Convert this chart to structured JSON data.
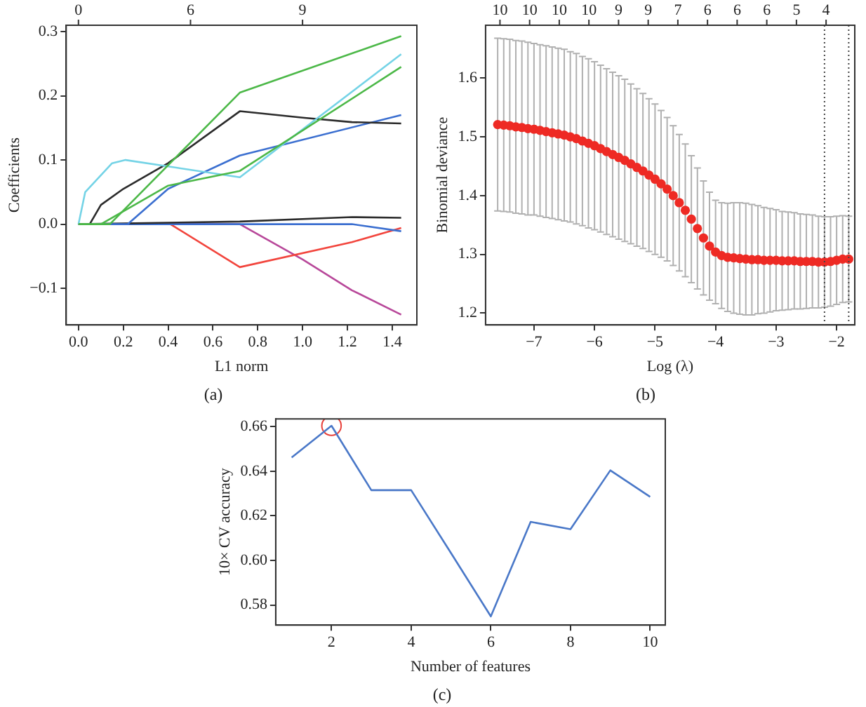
{
  "chart_data": [
    {
      "type": "line",
      "xlabel": "L1 norm",
      "ylabel": "Coefficients",
      "annotations": [
        "(a)",
        "0",
        "6",
        "9"
      ],
      "xlim": [
        -0.055,
        1.51
      ],
      "ylim": [
        -0.157,
        0.31
      ],
      "xticks": [
        {
          "value": 0,
          "label": "0.0"
        },
        {
          "value": 0.2,
          "label": "0.2"
        },
        {
          "value": 0.4,
          "label": "0.4"
        },
        {
          "value": 0.6,
          "label": "0.6"
        },
        {
          "value": 0.8,
          "label": "0.8"
        },
        {
          "value": 1,
          "label": "1.0"
        },
        {
          "value": 1.2,
          "label": "1.2"
        },
        {
          "value": 1.4,
          "label": "1.4"
        }
      ],
      "yticks": [
        {
          "value": -0.1,
          "label": "−0.1"
        },
        {
          "value": 0,
          "label": "0.0"
        },
        {
          "value": 0.1,
          "label": "0.1"
        },
        {
          "value": 0.2,
          "label": "0.2"
        },
        {
          "value": 0.3,
          "label": "0.3"
        }
      ],
      "grid": false,
      "legend": false,
      "marker": "none",
      "series": [
        {
          "color": "#4cb848",
          "x": [
            0,
            0.14,
            0.72,
            1.44
          ],
          "values": [
            0,
            0,
            0.205,
            0.293
          ]
        },
        {
          "color": "#4cb848",
          "x": [
            0,
            0.1,
            0.4,
            0.72,
            1.44
          ],
          "values": [
            0,
            0,
            0.06,
            0.083,
            0.245
          ]
        },
        {
          "color": "#74d3e6",
          "x": [
            0,
            0.03,
            0.15,
            0.21,
            0.4,
            0.72,
            1.44
          ],
          "values": [
            0,
            0.05,
            0.095,
            0.1,
            0.09,
            0.073,
            0.265
          ]
        },
        {
          "color": "#2b2b2b",
          "x": [
            0,
            0.05,
            0.1,
            0.2,
            0.4,
            0.72,
            1,
            1.22,
            1.44
          ],
          "values": [
            0,
            0,
            0.03,
            0.055,
            0.095,
            0.176,
            0.166,
            0.159,
            0.157
          ]
        },
        {
          "color": "#3b6fd0",
          "x": [
            0,
            0.22,
            0.4,
            0.72,
            1.44
          ],
          "values": [
            0,
            0,
            0.055,
            0.107,
            0.17
          ]
        },
        {
          "color": "#2b2b2b",
          "x": [
            0,
            0.72,
            1.22,
            1.44
          ],
          "values": [
            0,
            0.004,
            0.011,
            0.01
          ]
        },
        {
          "color": "#3b6fd0",
          "x": [
            0,
            1.22,
            1.44
          ],
          "values": [
            0,
            0,
            -0.011
          ]
        },
        {
          "color": "#f2453d",
          "x": [
            0,
            0.41,
            0.72,
            1.22,
            1.44
          ],
          "values": [
            0,
            0,
            -0.067,
            -0.028,
            -0.006
          ]
        },
        {
          "color": "#b8489a",
          "x": [
            0,
            0.72,
            1,
            1.22,
            1.44
          ],
          "values": [
            0,
            0,
            -0.055,
            -0.103,
            -0.141
          ]
        }
      ]
    },
    {
      "type": "scatter",
      "xlabel": "Log (λ)",
      "ylabel": "Binomial deviance",
      "annotations": [
        "(b)",
        "10",
        "10",
        "10",
        "10",
        "9",
        "9",
        "7",
        "6",
        "6",
        "6",
        "5",
        "4"
      ],
      "xlim": [
        -7.8,
        -1.7
      ],
      "ylim": [
        1.18,
        1.69
      ],
      "xticks": [
        {
          "value": -7,
          "label": "−7"
        },
        {
          "value": -6,
          "label": "−6"
        },
        {
          "value": -5,
          "label": "−5"
        },
        {
          "value": -4,
          "label": "−4"
        },
        {
          "value": -3,
          "label": "−3"
        },
        {
          "value": -2,
          "label": "−2"
        }
      ],
      "yticks": [
        1.2,
        1.3,
        1.4,
        1.5,
        1.6
      ],
      "grid": false,
      "legend": false,
      "marker": "circle",
      "ref_lines": [
        {
          "axis": "x",
          "value": -2.2,
          "line_style": "dotted"
        },
        {
          "axis": "x",
          "value": -1.8,
          "line_style": "dotted"
        }
      ],
      "series": [
        {
          "color": "#ee2a24",
          "x": [
            -7.6,
            -7.5,
            -7.4,
            -7.3,
            -7.2,
            -7.1,
            -7.0,
            -6.9,
            -6.8,
            -6.7,
            -6.6,
            -6.5,
            -6.4,
            -6.3,
            -6.2,
            -6.1,
            -6.0,
            -5.9,
            -5.8,
            -5.7,
            -5.6,
            -5.5,
            -5.4,
            -5.3,
            -5.2,
            -5.1,
            -5.0,
            -4.9,
            -4.8,
            -4.7,
            -4.6,
            -4.5,
            -4.4,
            -4.3,
            -4.2,
            -4.1,
            -4.0,
            -3.9,
            -3.8,
            -3.7,
            -3.6,
            -3.5,
            -3.4,
            -3.3,
            -3.2,
            -3.1,
            -3.0,
            -2.9,
            -2.8,
            -2.7,
            -2.6,
            -2.5,
            -2.4,
            -2.3,
            -2.2,
            -2.1,
            -2.0,
            -1.9,
            -1.8
          ],
          "values": [
            1.521,
            1.52,
            1.519,
            1.517,
            1.516,
            1.514,
            1.513,
            1.511,
            1.509,
            1.507,
            1.505,
            1.503,
            1.5,
            1.497,
            1.493,
            1.489,
            1.485,
            1.48,
            1.475,
            1.47,
            1.465,
            1.46,
            1.454,
            1.448,
            1.442,
            1.435,
            1.428,
            1.42,
            1.411,
            1.4,
            1.388,
            1.375,
            1.36,
            1.344,
            1.328,
            1.314,
            1.304,
            1.298,
            1.295,
            1.294,
            1.293,
            1.292,
            1.291,
            1.291,
            1.29,
            1.29,
            1.29,
            1.289,
            1.289,
            1.289,
            1.288,
            1.288,
            1.288,
            1.287,
            1.287,
            1.288,
            1.29,
            1.292,
            1.292
          ],
          "errors": [
            0.147,
            0.147,
            0.147,
            0.147,
            0.147,
            0.147,
            0.146,
            0.146,
            0.146,
            0.146,
            0.146,
            0.146,
            0.145,
            0.145,
            0.144,
            0.144,
            0.143,
            0.142,
            0.141,
            0.14,
            0.139,
            0.138,
            0.136,
            0.134,
            0.132,
            0.13,
            0.128,
            0.125,
            0.122,
            0.119,
            0.116,
            0.113,
            0.108,
            0.103,
            0.097,
            0.092,
            0.088,
            0.09,
            0.092,
            0.094,
            0.095,
            0.095,
            0.094,
            0.092,
            0.09,
            0.088,
            0.086,
            0.084,
            0.083,
            0.082,
            0.081,
            0.08,
            0.079,
            0.078,
            0.077,
            0.076,
            0.075,
            0.074,
            0.073
          ]
        }
      ]
    },
    {
      "type": "line",
      "xlabel": "Number of features",
      "ylabel": "10× CV accuracy",
      "annotations": [
        "(c)"
      ],
      "xlim": [
        0.6,
        10.38
      ],
      "ylim": [
        0.571,
        0.6635
      ],
      "xticks": [
        2,
        4,
        6,
        8,
        10
      ],
      "yticks": [
        {
          "value": 0.58,
          "label": "0.58"
        },
        {
          "value": 0.6,
          "label": "0.60"
        },
        {
          "value": 0.62,
          "label": "0.62"
        },
        {
          "value": 0.64,
          "label": "0.64"
        },
        {
          "value": 0.66,
          "label": "0.66"
        }
      ],
      "grid": false,
      "legend": false,
      "marker": "none",
      "series": [
        {
          "color": "#4a78c8",
          "x": [
            1,
            2,
            3,
            4,
            5,
            6,
            7,
            8,
            9,
            10
          ],
          "values": [
            0.6462,
            0.6604,
            0.6315,
            0.6315,
            0.6033,
            0.5749,
            0.6173,
            0.614,
            0.6404,
            0.6285
          ]
        },
        {
          "type": "scatter",
          "marker": "circle",
          "color": "#e8403a",
          "x": [
            2
          ],
          "values": [
            0.6604
          ]
        }
      ]
    }
  ]
}
